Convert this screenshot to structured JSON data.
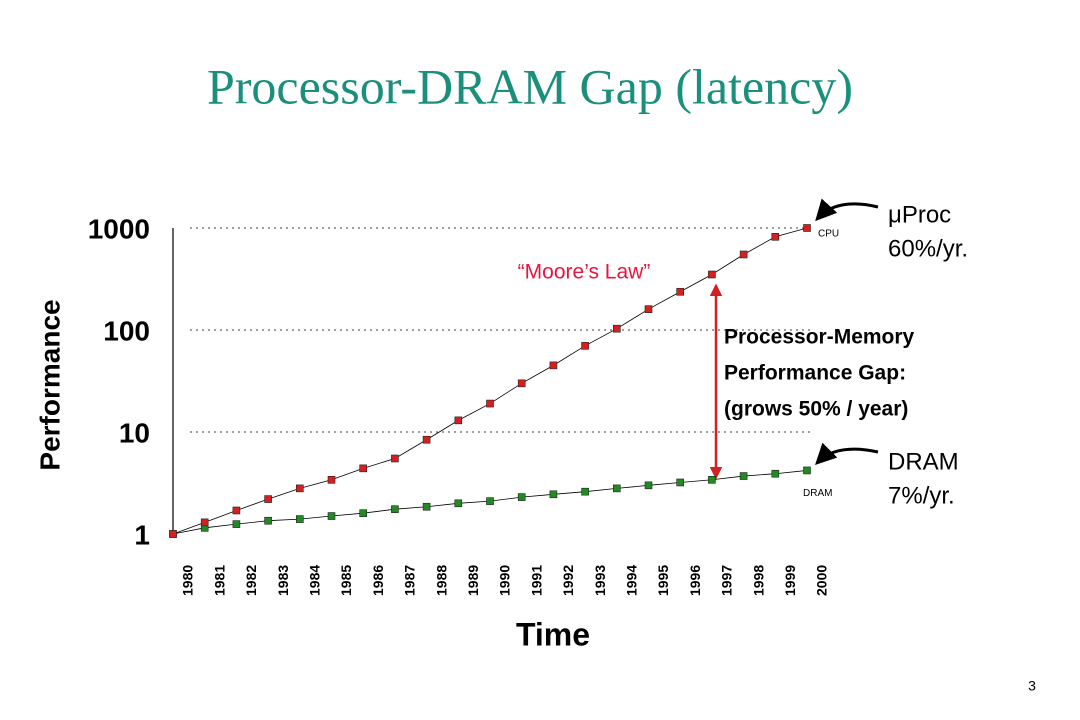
{
  "chart_data": {
    "type": "line",
    "title": "Processor-DRAM Gap (latency)",
    "x_label": "Time",
    "y_label": "Performance",
    "categories": [
      "1980",
      "1981",
      "1982",
      "1983",
      "1984",
      "1985",
      "1986",
      "1987",
      "1988",
      "1989",
      "1990",
      "1991",
      "1992",
      "1993",
      "1994",
      "1995",
      "1996",
      "1997",
      "1998",
      "1999",
      "2000"
    ],
    "series": [
      {
        "name": "CPU",
        "color": "#d42020",
        "values": [
          1,
          1.3,
          1.7,
          2.2,
          2.8,
          3.4,
          4.4,
          5.5,
          8.4,
          13,
          19,
          30,
          45,
          70,
          103,
          160,
          237,
          350,
          550,
          820,
          1000
        ]
      },
      {
        "name": "DRAM",
        "color": "#228a22",
        "values": [
          1,
          1.15,
          1.25,
          1.35,
          1.4,
          1.5,
          1.6,
          1.75,
          1.85,
          2.0,
          2.1,
          2.3,
          2.45,
          2.6,
          2.8,
          3.0,
          3.2,
          3.4,
          3.7,
          3.9,
          4.2
        ]
      }
    ],
    "ylim": [
      1,
      1000
    ],
    "yticks": [
      1,
      10,
      100,
      1000
    ],
    "log_y": true,
    "grid": true,
    "annotations": [
      {
        "lines": [
          "μProc",
          "60%/yr."
        ]
      },
      {
        "lines": [
          "DRAM",
          "7%/yr."
        ]
      },
      {
        "lines": [
          "Processor-Memory",
          "Performance Gap:",
          "(grows 50% / year)"
        ]
      },
      {
        "lines": [
          "“Moore’s Law”"
        ]
      }
    ]
  },
  "page_number": "3"
}
